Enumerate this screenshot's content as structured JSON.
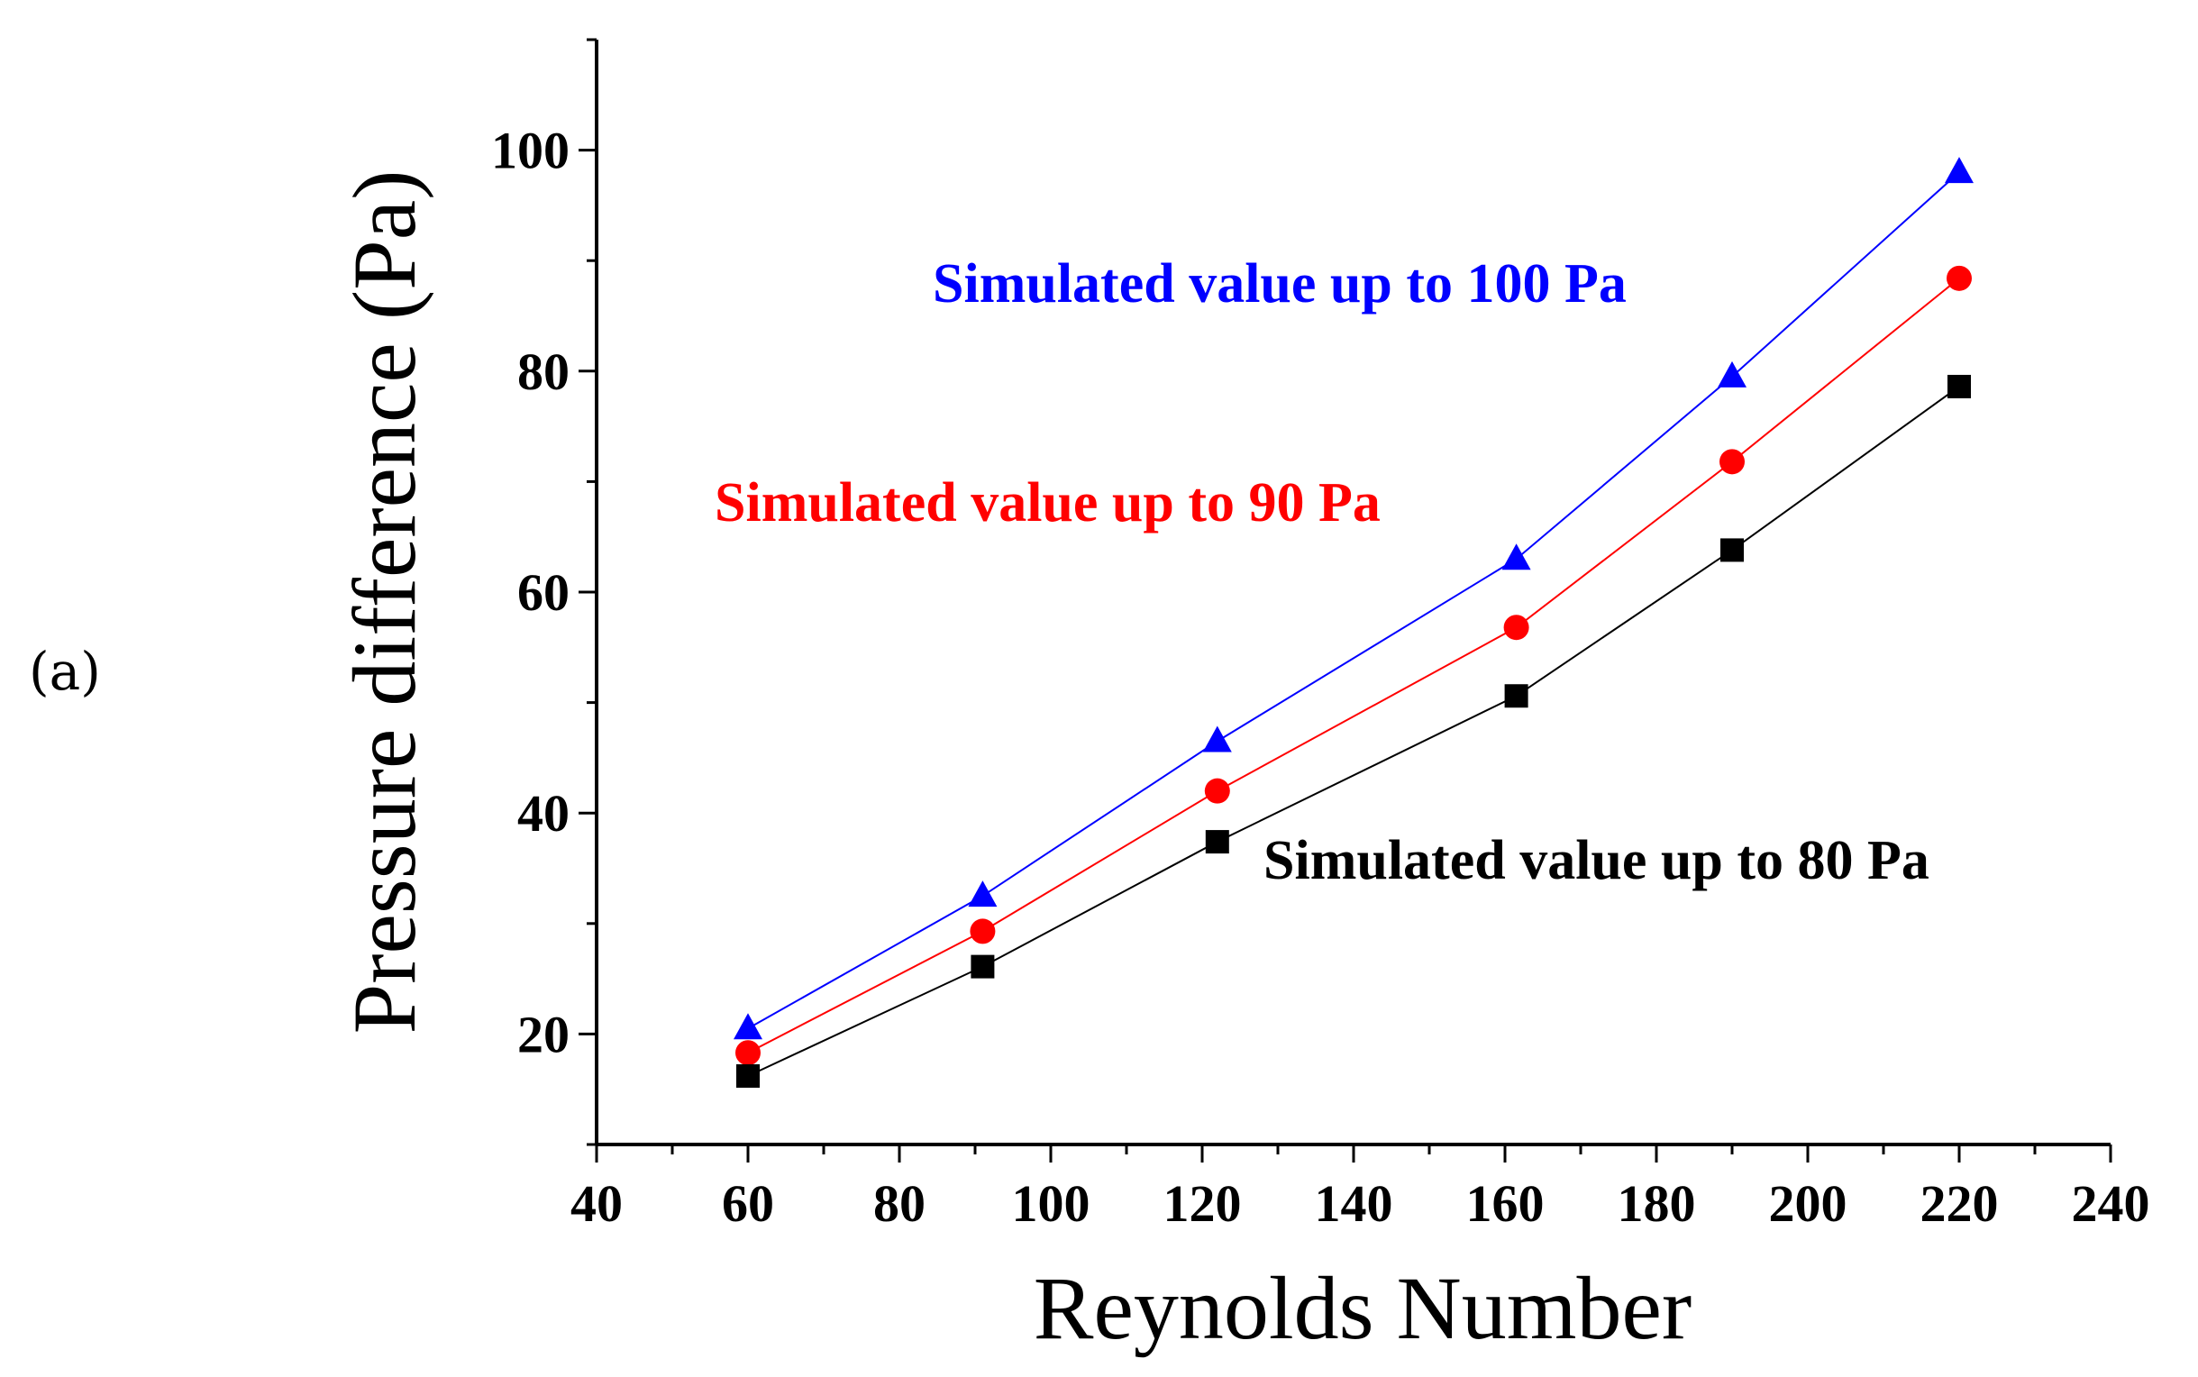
{
  "panel_label": "(a)",
  "chart_data": {
    "type": "line",
    "title": "",
    "xlabel": "Reynolds Number",
    "ylabel": "Pressure difference (Pa)",
    "xlim": [
      40,
      240
    ],
    "ylim": [
      10,
      110
    ],
    "x_ticks": [
      40,
      60,
      80,
      100,
      120,
      140,
      160,
      180,
      200,
      220,
      240
    ],
    "y_ticks": [
      20,
      40,
      60,
      80,
      100
    ],
    "x": [
      60,
      91,
      122,
      161.5,
      190,
      220
    ],
    "series": [
      {
        "name": "Simulated value up to 100 Pa",
        "color": "#0000ff",
        "marker": "triangle",
        "values": [
          20.5,
          32.5,
          46.5,
          63,
          79.5,
          98
        ]
      },
      {
        "name": "Simulated value up to 90 Pa",
        "color": "#ff0000",
        "marker": "circle",
        "values": [
          18.3,
          29.3,
          42,
          56.8,
          71.8,
          88.4
        ]
      },
      {
        "name": "Simulated value up to 80 Pa",
        "color": "#000000",
        "marker": "square",
        "values": [
          16.2,
          26.1,
          37.4,
          50.6,
          63.8,
          78.6
        ]
      }
    ],
    "annotations": [
      {
        "text": "Simulated value up to 100 Pa",
        "color": "#0000ff"
      },
      {
        "text": "Simulated value up to 90 Pa",
        "color": "#ff0000"
      },
      {
        "text": "Simulated value up to 80 Pa",
        "color": "#000000"
      }
    ]
  }
}
